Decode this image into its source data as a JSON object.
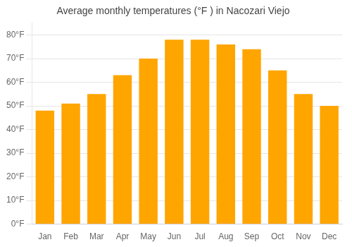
{
  "chart_data": {
    "type": "bar",
    "title": "Average monthly temperatures (°F ) in Nacozari Viejo",
    "categories": [
      "Jan",
      "Feb",
      "Mar",
      "Apr",
      "May",
      "Jun",
      "Jul",
      "Aug",
      "Sep",
      "Oct",
      "Nov",
      "Dec"
    ],
    "values": [
      48,
      51,
      55,
      63,
      70,
      78,
      78,
      76,
      74,
      65,
      55,
      50
    ],
    "color": "#FFA500",
    "ylim": [
      0,
      85
    ],
    "yticks": [
      {
        "value": 0,
        "label": "0°F"
      },
      {
        "value": 10,
        "label": "10°F"
      },
      {
        "value": 20,
        "label": "20°F"
      },
      {
        "value": 30,
        "label": "30°F"
      },
      {
        "value": 40,
        "label": "40°F"
      },
      {
        "value": 50,
        "label": "50°F"
      },
      {
        "value": 60,
        "label": "60°F"
      },
      {
        "value": 70,
        "label": "70°F"
      },
      {
        "value": 80,
        "label": "80°F"
      }
    ],
    "grid": true
  }
}
